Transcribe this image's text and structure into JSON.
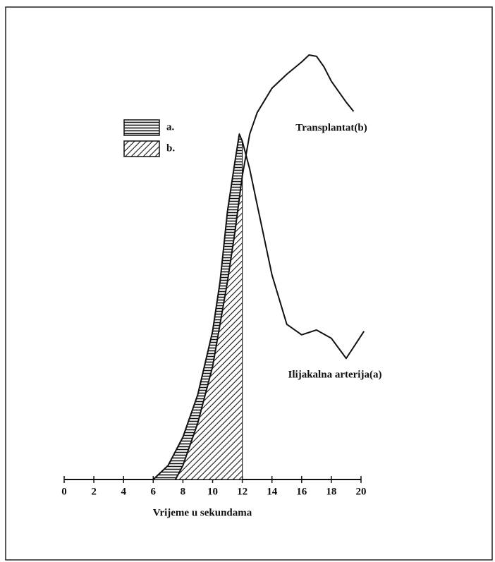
{
  "chart_data": {
    "type": "line",
    "xlabel": "Vrijeme u sekundama",
    "xlim": [
      0,
      20
    ],
    "xticks": [
      0,
      2,
      4,
      6,
      8,
      10,
      12,
      14,
      16,
      18,
      20
    ],
    "ylim": [
      0,
      100
    ],
    "shaded_xmax": 12,
    "series": [
      {
        "name": "a.",
        "label": "Ilijakalna arterija(a)",
        "color": "#111111",
        "pattern": "horizontal",
        "x": [
          6,
          7,
          8,
          9,
          10,
          10.5,
          11,
          11.5,
          11.8,
          12,
          12.5,
          13,
          14,
          15,
          16,
          17,
          18,
          19,
          20.2
        ],
        "values": [
          0,
          3.2,
          9.7,
          19.4,
          33.9,
          45.2,
          61.3,
          72.6,
          79.0,
          77.4,
          71.0,
          62.9,
          46.8,
          35.5,
          33.1,
          34.2,
          32.3,
          27.7,
          33.9
        ]
      },
      {
        "name": "b.",
        "label": "Transplantat(b)",
        "color": "#111111",
        "pattern": "diagonal",
        "x": [
          7.5,
          8,
          9,
          10,
          11,
          11.5,
          12,
          12.5,
          13,
          14,
          15,
          16,
          16.5,
          17,
          17.5,
          18,
          19,
          19.5
        ],
        "values": [
          0,
          3.2,
          12.9,
          25.8,
          45.2,
          56.5,
          69.4,
          79.0,
          83.9,
          89.5,
          92.7,
          95.5,
          97.1,
          96.8,
          94.4,
          91.1,
          86.3,
          84.2
        ]
      }
    ]
  }
}
